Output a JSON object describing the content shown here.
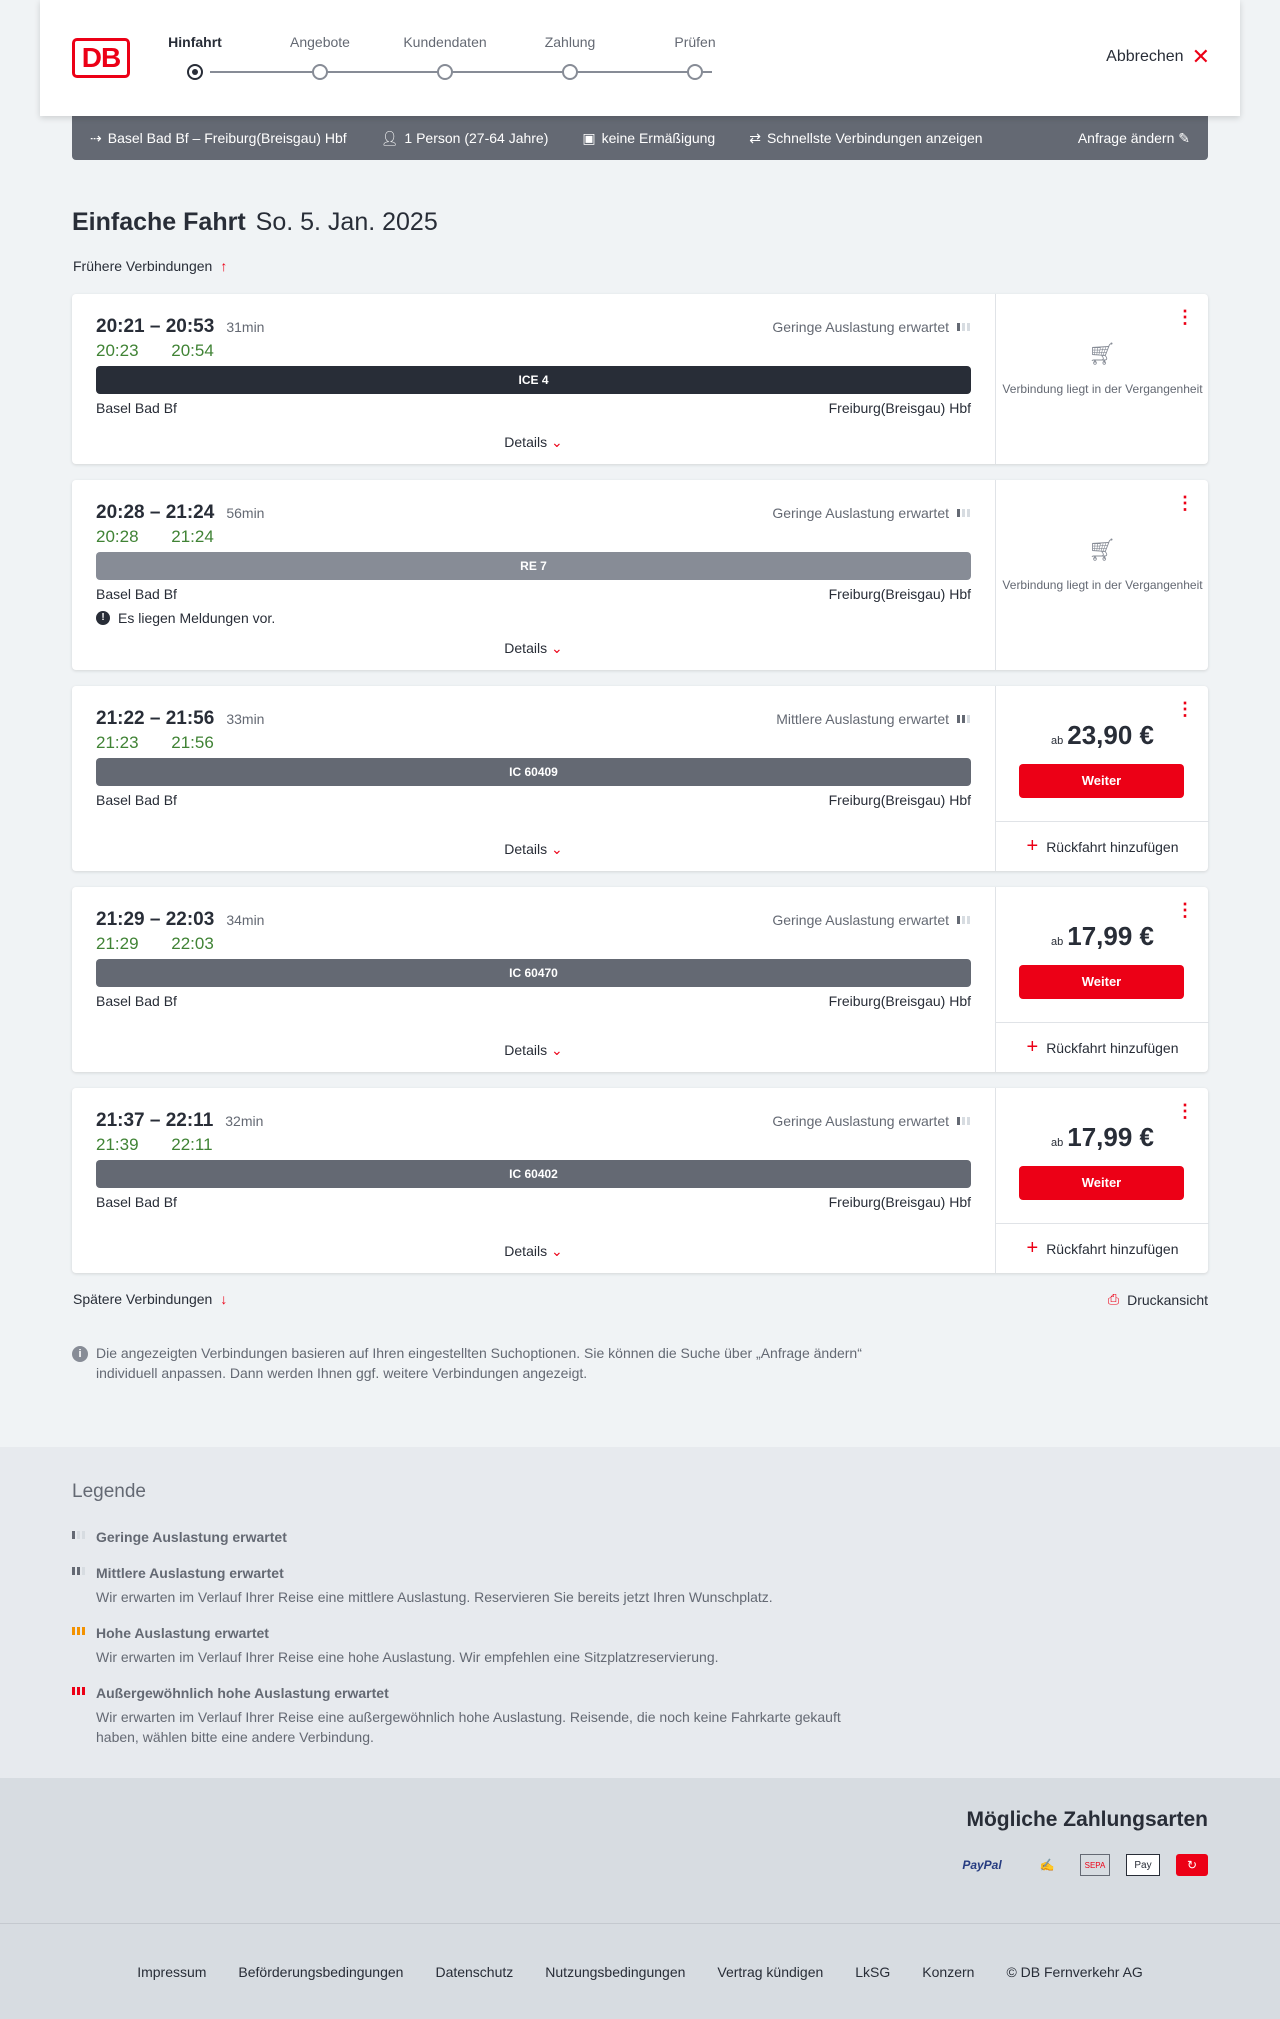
{
  "header": {
    "logo": "DB",
    "steps": [
      "Hinfahrt",
      "Angebote",
      "Kundendaten",
      "Zahlung",
      "Prüfen"
    ],
    "active_step": 0,
    "cancel": "Abbrechen"
  },
  "summary": {
    "route": "Basel Bad Bf – Freiburg(Breisgau) Hbf",
    "travellers": "1 Person (27-64 Jahre)",
    "discount": "keine Ermäßigung",
    "option": "Schnellste Verbindungen anzeigen",
    "edit": "Anfrage ändern"
  },
  "page": {
    "title": "Einfache Fahrt",
    "date": "So. 5. Jan. 2025",
    "earlier": "Frühere Verbindungen",
    "later": "Spätere Verbindungen",
    "print": "Druckansicht",
    "info": "Die angezeigten Verbindungen basieren auf Ihren eingestellten Suchoptionen. Sie können die Suche über „Anfrage ändern“ individuell anpassen. Dann werden Ihnen ggf. weitere Verbindungen angezeigt."
  },
  "labels": {
    "details": "Details",
    "past": "Verbindung liegt in der Vergangenheit",
    "from_prefix": "ab",
    "continue": "Weiter",
    "return": "Rückfahrt hinzufügen"
  },
  "connections": [
    {
      "times": "20:21 – 20:53",
      "duration": "31min",
      "realtime": "20:23 20:54",
      "load": "Geringe Auslastung erwartet",
      "load_level": 1,
      "train": "ICE 4",
      "train_color": "#282d37",
      "from": "Basel Bad Bf",
      "to": "Freiburg(Breisgau) Hbf",
      "past": true
    },
    {
      "times": "20:28 – 21:24",
      "duration": "56min",
      "realtime": "20:28 21:24",
      "load": "Geringe Auslastung erwartet",
      "load_level": 1,
      "train": "RE 7",
      "train_color": "#878c96",
      "from": "Basel Bad Bf",
      "to": "Freiburg(Breisgau) Hbf",
      "message": "Es liegen Meldungen vor.",
      "past": true
    },
    {
      "times": "21:22 – 21:56",
      "duration": "33min",
      "realtime": "21:23 21:56",
      "load": "Mittlere Auslastung erwartet",
      "load_level": 2,
      "train": "IC 60409",
      "train_color": "#646973",
      "from": "Basel Bad Bf",
      "to": "Freiburg(Breisgau) Hbf",
      "price": "23,90 €"
    },
    {
      "times": "21:29 – 22:03",
      "duration": "34min",
      "realtime": "21:29 22:03",
      "load": "Geringe Auslastung erwartet",
      "load_level": 1,
      "train": "IC 60470",
      "train_color": "#646973",
      "from": "Basel Bad Bf",
      "to": "Freiburg(Breisgau) Hbf",
      "price": "17,99 €"
    },
    {
      "times": "21:37 – 22:11",
      "duration": "32min",
      "realtime": "21:39 22:11",
      "load": "Geringe Auslastung erwartet",
      "load_level": 1,
      "train": "IC 60402",
      "train_color": "#646973",
      "from": "Basel Bad Bf",
      "to": "Freiburg(Breisgau) Hbf",
      "price": "17,99 €"
    }
  ],
  "legend": {
    "title": "Legende",
    "items": [
      {
        "title": "Geringe Auslastung erwartet",
        "text": "",
        "color": "#646973",
        "level": 1
      },
      {
        "title": "Mittlere Auslastung erwartet",
        "text": "Wir erwarten im Verlauf Ihrer Reise eine mittlere Auslastung. Reservieren Sie bereits jetzt Ihren Wunschplatz.",
        "color": "#646973",
        "level": 2
      },
      {
        "title": "Hohe Auslastung erwartet",
        "text": "Wir erwarten im Verlauf Ihrer Reise eine hohe Auslastung. Wir empfehlen eine Sitzplatzreservierung.",
        "color": "#f39200",
        "level": 3
      },
      {
        "title": "Außergewöhnlich hohe Auslastung erwartet",
        "text": "Wir erwarten im Verlauf Ihrer Reise eine außergewöhnlich hohe Auslastung. Reisende, die noch keine Fahrkarte gekauft haben, wählen bitte eine andere Verbindung.",
        "color": "#ec0016",
        "level": 3
      }
    ]
  },
  "payment": {
    "title": "Mögliche Zahlungsarten",
    "methods": [
      "PayPal",
      "Kreditkarte",
      "SEPA",
      "Apple Pay",
      "Sofortüberweisung"
    ]
  },
  "footer": {
    "links": [
      "Impressum",
      "Beförderungsbedingungen",
      "Datenschutz",
      "Nutzungsbedingungen",
      "Vertrag kündigen",
      "LkSG",
      "Konzern",
      "© DB Fernverkehr AG"
    ]
  },
  "colors": {
    "accent": "#ec0016",
    "realtime": "#408335"
  }
}
